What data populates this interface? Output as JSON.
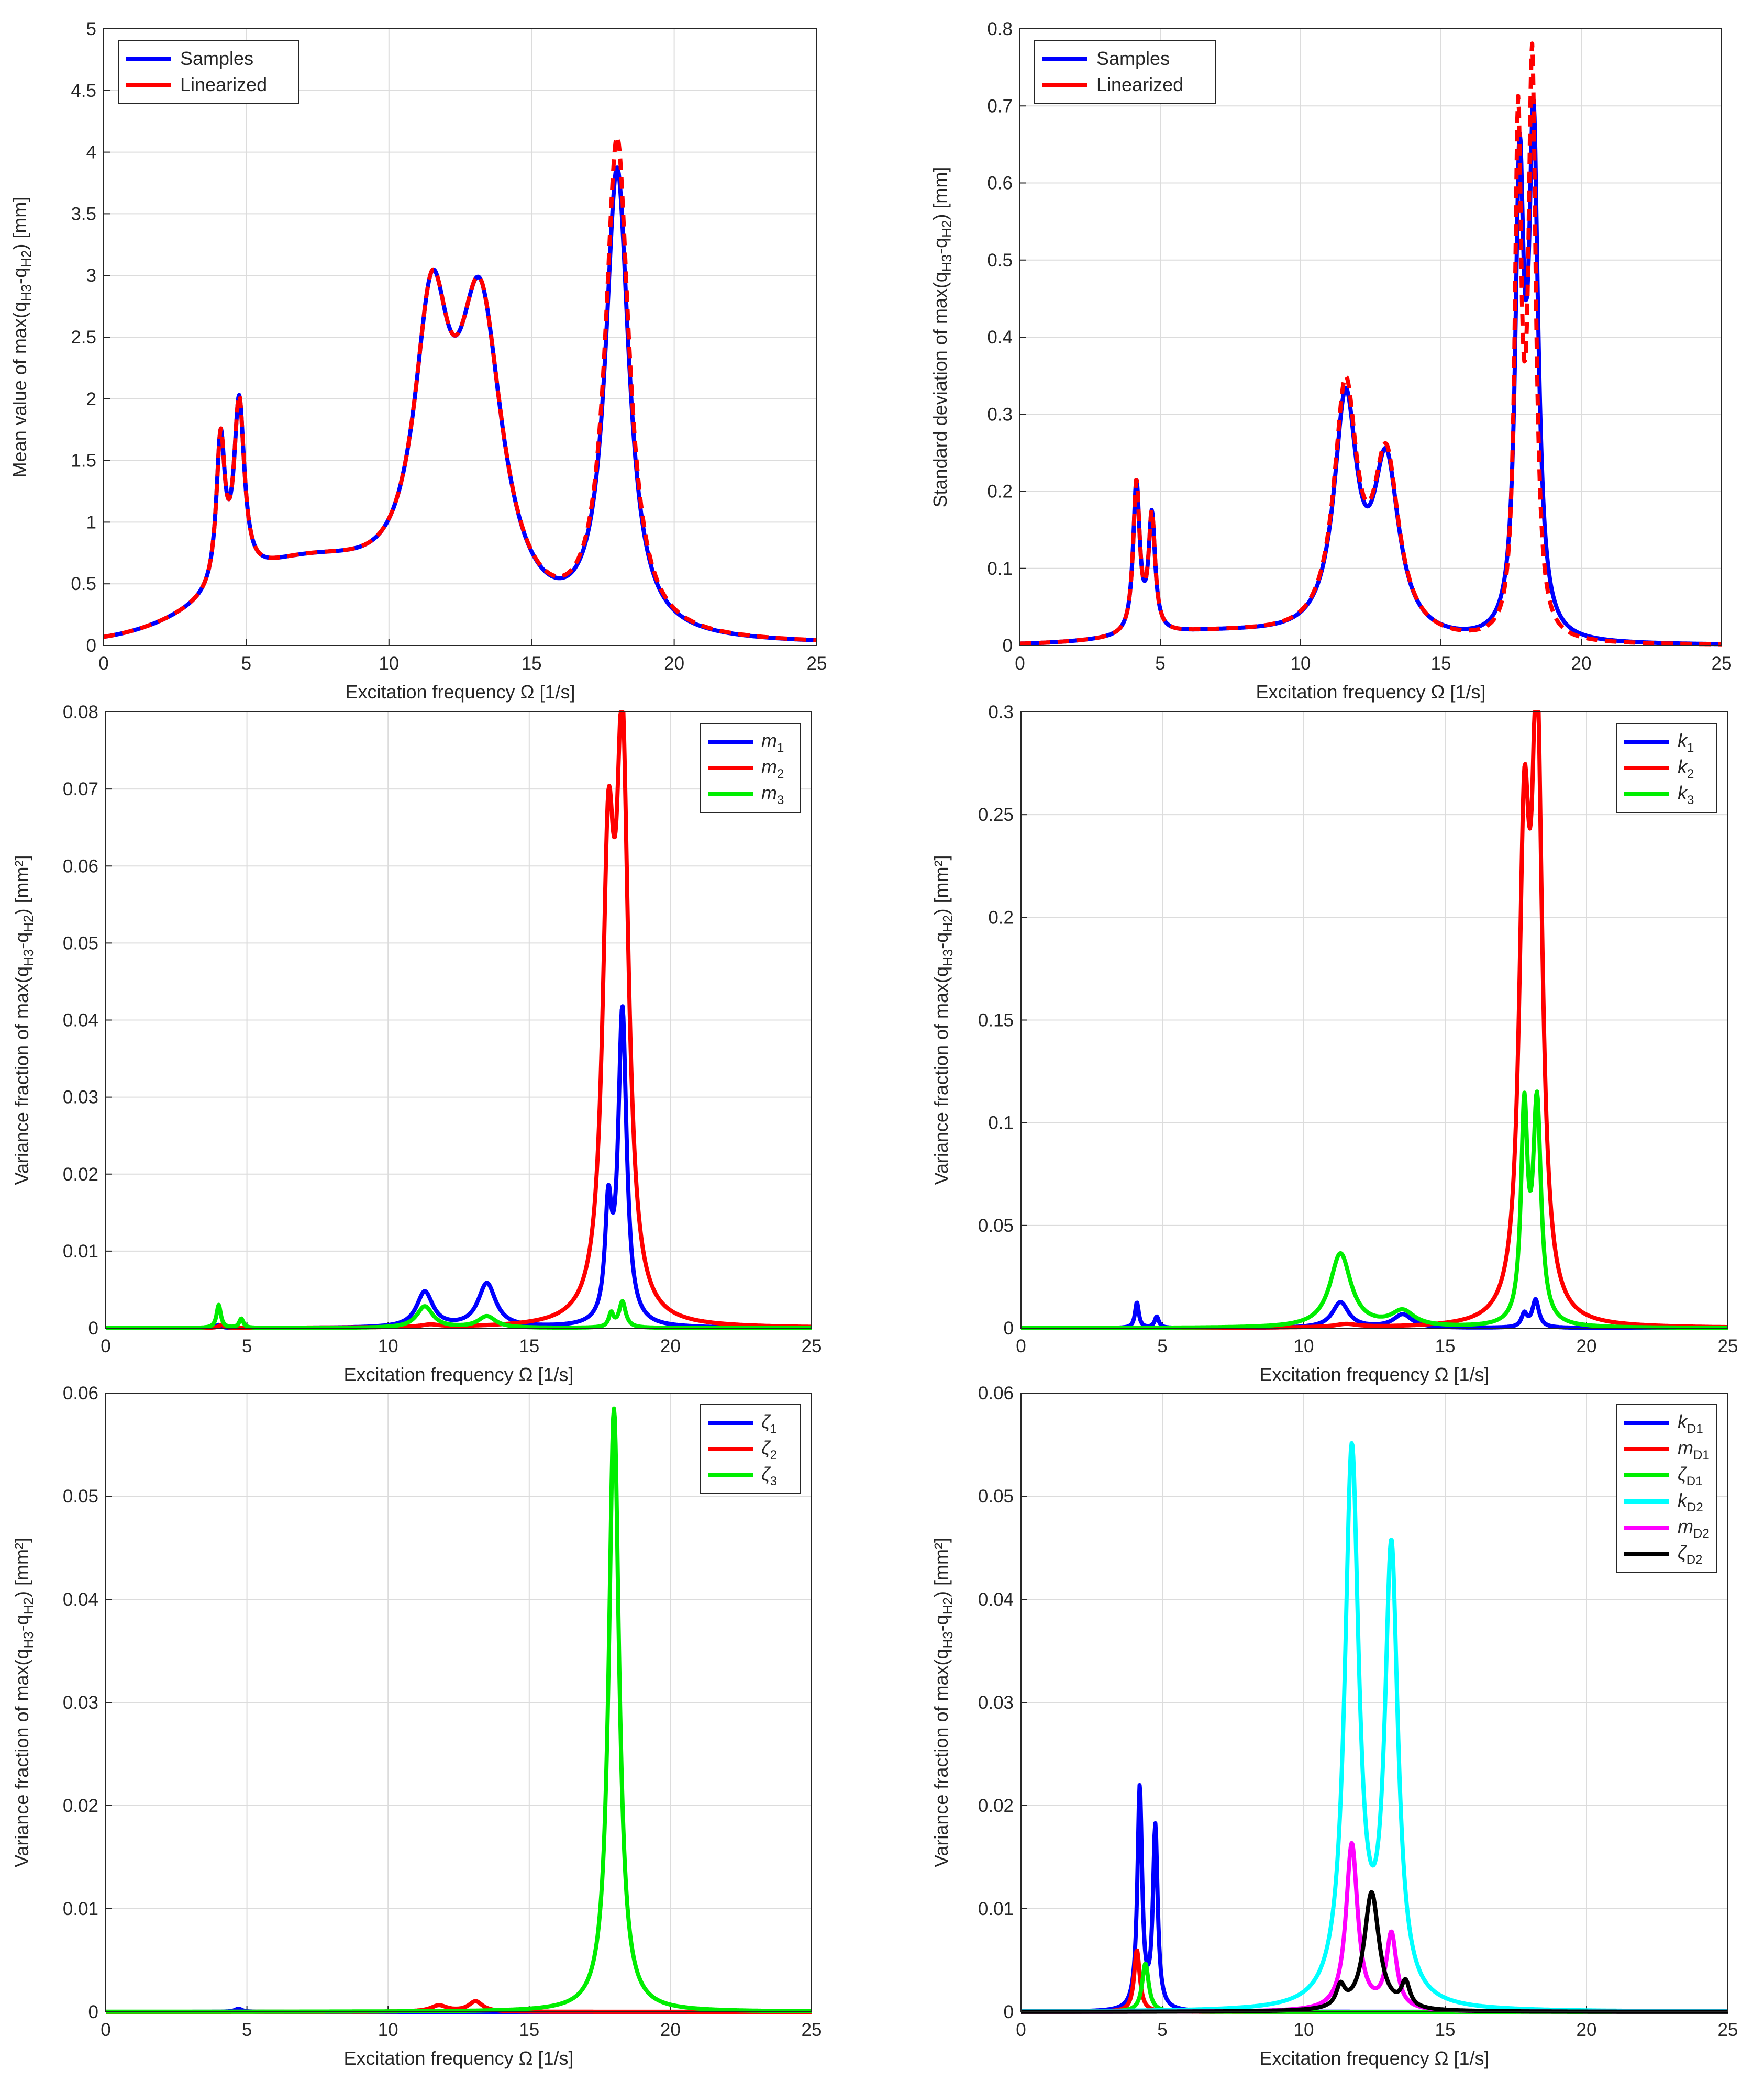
{
  "chart_data": [
    {
      "type": "line",
      "xlabel": "Excitation frequency Ω [1/s]",
      "ylabel": "Mean value of max(q",
      "ylabel_parts": [
        [
          "Mean value of max(q",
          ""
        ],
        [
          "H3",
          "sub"
        ],
        [
          "-q",
          ""
        ],
        [
          "H2",
          "sub"
        ],
        [
          ") [mm]",
          ""
        ]
      ],
      "xlim": [
        0,
        25
      ],
      "ylim": [
        0,
        5
      ],
      "xticks": [
        "0",
        "5",
        "10",
        "15",
        "20",
        "25"
      ],
      "yticks": [
        "0",
        "0.5",
        "1",
        "1.5",
        "2",
        "2.5",
        "3",
        "3.5",
        "4",
        "4.5",
        "5"
      ],
      "grid": true,
      "legend_position": "top-left",
      "series": [
        {
          "name": "Samples",
          "color": "#0000ff",
          "dash": "solid",
          "peaks": [
            [
              4.1,
              1.18,
              0.18
            ],
            [
              4.75,
              1.43,
              0.22
            ],
            [
              11.5,
              2.22,
              0.75
            ],
            [
              13.2,
              2.5,
              0.95
            ],
            [
              18.0,
              3.75,
              0.5
            ]
          ],
          "base": [
            [
              7.0,
              0.6,
              3.0
            ]
          ]
        },
        {
          "name": "Linearized",
          "color": "#ff0000",
          "dash": "dashed",
          "peaks": [
            [
              4.1,
              1.18,
              0.18
            ],
            [
              4.75,
              1.43,
              0.22
            ],
            [
              11.5,
              2.22,
              0.75
            ],
            [
              13.2,
              2.5,
              0.95
            ],
            [
              18.0,
              4.0,
              0.5
            ]
          ],
          "base": [
            [
              7.0,
              0.6,
              3.0
            ]
          ]
        }
      ]
    },
    {
      "type": "line",
      "xlabel": "Excitation frequency Ω [1/s]",
      "ylabel": "Standard deviation of max(q",
      "ylabel_parts": [
        [
          "Standard deviation of max(q",
          ""
        ],
        [
          "H3",
          "sub"
        ],
        [
          "-q",
          ""
        ],
        [
          "H2",
          "sub"
        ],
        [
          ") [mm]",
          ""
        ]
      ],
      "xlim": [
        0,
        25
      ],
      "ylim": [
        0,
        0.8
      ],
      "xticks": [
        "0",
        "5",
        "10",
        "15",
        "20",
        "25"
      ],
      "yticks": [
        "0",
        "0.1",
        "0.2",
        "0.3",
        "0.4",
        "0.5",
        "0.6",
        "0.7",
        "0.8"
      ],
      "grid": true,
      "legend_position": "top-left",
      "series": [
        {
          "name": "Samples",
          "color": "#0000ff",
          "dash": "solid",
          "peaks": [
            [
              4.15,
              0.195,
              0.14
            ],
            [
              4.7,
              0.15,
              0.14
            ],
            [
              11.6,
              0.3,
              0.5
            ],
            [
              13.05,
              0.22,
              0.55
            ],
            [
              17.8,
              0.57,
              0.18
            ],
            [
              18.3,
              0.64,
              0.2
            ]
          ],
          "base": [
            [
              7.0,
              0.015,
              3.0
            ]
          ]
        },
        {
          "name": "Linearized",
          "color": "#ff0000",
          "dash": "dashed",
          "peaks": [
            [
              4.15,
              0.195,
              0.14
            ],
            [
              4.7,
              0.15,
              0.14
            ],
            [
              11.6,
              0.315,
              0.5
            ],
            [
              13.05,
              0.225,
              0.55
            ],
            [
              17.75,
              0.64,
              0.14
            ],
            [
              18.25,
              0.73,
              0.16
            ]
          ],
          "base": [
            [
              7.0,
              0.015,
              3.0
            ]
          ]
        }
      ]
    },
    {
      "type": "line",
      "xlabel": "Excitation frequency Ω [1/s]",
      "ylabel": "Variance fraction of max(q",
      "ylabel_parts": [
        [
          "Variance fraction of max(q",
          ""
        ],
        [
          "H3",
          "sub"
        ],
        [
          "-q",
          ""
        ],
        [
          "H2",
          "sub"
        ],
        [
          ") [mm²]",
          ""
        ]
      ],
      "xlim": [
        0,
        25
      ],
      "ylim": [
        0,
        0.08
      ],
      "xticks": [
        "0",
        "5",
        "10",
        "15",
        "20",
        "25"
      ],
      "yticks": [
        "0",
        "0.01",
        "0.02",
        "0.03",
        "0.04",
        "0.05",
        "0.06",
        "0.07",
        "0.08"
      ],
      "grid": true,
      "legend_position": "top-right",
      "series": [
        {
          "name": "m1",
          "sym": "m",
          "sub": "1",
          "color": "#0000ff",
          "dash": "solid",
          "peaks": [
            [
              4.0,
              0.0004,
              0.1
            ],
            [
              11.3,
              0.0046,
              0.35
            ],
            [
              13.5,
              0.0057,
              0.38
            ],
            [
              17.8,
              0.0138,
              0.14
            ],
            [
              18.3,
              0.0408,
              0.18
            ]
          ],
          "base": []
        },
        {
          "name": "m2",
          "sym": "m",
          "sub": "2",
          "color": "#ff0000",
          "dash": "solid",
          "peaks": [
            [
              4.1,
              0.0004,
              0.1
            ],
            [
              11.5,
              0.0003,
              0.4
            ],
            [
              17.8,
              0.0545,
              0.25
            ],
            [
              18.3,
              0.0712,
              0.26
            ]
          ],
          "base": []
        },
        {
          "name": "m3",
          "sym": "m",
          "sub": "3",
          "color": "#00ee00",
          "dash": "solid",
          "peaks": [
            [
              4.0,
              0.003,
              0.09
            ],
            [
              4.8,
              0.0012,
              0.09
            ],
            [
              11.3,
              0.0028,
              0.35
            ],
            [
              13.5,
              0.0015,
              0.38
            ],
            [
              17.9,
              0.0018,
              0.1
            ],
            [
              18.3,
              0.0034,
              0.14
            ]
          ],
          "base": []
        }
      ]
    },
    {
      "type": "line",
      "xlabel": "Excitation frequency Ω [1/s]",
      "ylabel": "Variance fraction of max(q",
      "ylabel_parts": [
        [
          "Variance fraction of max(q",
          ""
        ],
        [
          "H3",
          "sub"
        ],
        [
          "-q",
          ""
        ],
        [
          "H2",
          "sub"
        ],
        [
          ") [mm²]",
          ""
        ]
      ],
      "xlim": [
        0,
        25
      ],
      "ylim": [
        0,
        0.3
      ],
      "xticks": [
        "0",
        "5",
        "10",
        "15",
        "20",
        "25"
      ],
      "yticks": [
        "0",
        "0.05",
        "0.1",
        "0.15",
        "0.2",
        "0.25",
        "0.3"
      ],
      "grid": true,
      "legend_position": "top-right",
      "series": [
        {
          "name": "k1",
          "sym": "k",
          "sub": "1",
          "color": "#0000ff",
          "dash": "solid",
          "peaks": [
            [
              4.1,
              0.0125,
              0.08
            ],
            [
              4.8,
              0.0055,
              0.09
            ],
            [
              11.3,
              0.0125,
              0.35
            ],
            [
              13.5,
              0.0065,
              0.4
            ],
            [
              17.8,
              0.0065,
              0.12
            ],
            [
              18.2,
              0.0135,
              0.14
            ]
          ],
          "base": []
        },
        {
          "name": "k2",
          "sym": "k",
          "sub": "2",
          "color": "#ff0000",
          "dash": "solid",
          "peaks": [
            [
              11.5,
              0.0015,
              0.5
            ],
            [
              17.8,
              0.2175,
              0.22
            ],
            [
              18.25,
              0.2845,
              0.22
            ]
          ],
          "base": []
        },
        {
          "name": "k3",
          "sym": "k",
          "sub": "3",
          "color": "#00ee00",
          "dash": "solid",
          "peaks": [
            [
              11.3,
              0.036,
              0.45
            ],
            [
              13.5,
              0.0075,
              0.5
            ],
            [
              17.8,
              0.101,
              0.14
            ],
            [
              18.25,
              0.106,
              0.17
            ]
          ],
          "base": []
        }
      ]
    },
    {
      "type": "line",
      "xlabel": "Excitation frequency Ω [1/s]",
      "ylabel": "Variance fraction of max(q",
      "ylabel_parts": [
        [
          "Variance fraction of max(q",
          ""
        ],
        [
          "H3",
          "sub"
        ],
        [
          "-q",
          ""
        ],
        [
          "H2",
          "sub"
        ],
        [
          ") [mm²]",
          ""
        ]
      ],
      "xlim": [
        0,
        25
      ],
      "ylim": [
        0,
        0.06
      ],
      "xticks": [
        "0",
        "5",
        "10",
        "15",
        "20",
        "25"
      ],
      "yticks": [
        "0",
        "0.01",
        "0.02",
        "0.03",
        "0.04",
        "0.05",
        "0.06"
      ],
      "grid": true,
      "legend_position": "top-right",
      "series": [
        {
          "name": "ζ1",
          "sym": "ζ",
          "sub": "1",
          "color": "#0000ff",
          "dash": "solid",
          "peaks": [
            [
              4.7,
              0.0003,
              0.15
            ]
          ],
          "base": []
        },
        {
          "name": "ζ2",
          "sym": "ζ",
          "sub": "2",
          "color": "#ff0000",
          "dash": "solid",
          "peaks": [
            [
              11.8,
              0.0006,
              0.35
            ],
            [
              13.1,
              0.001,
              0.3
            ]
          ],
          "base": []
        },
        {
          "name": "ζ3",
          "sym": "ζ",
          "sub": "3",
          "color": "#00ee00",
          "dash": "solid",
          "peaks": [
            [
              18.0,
              0.0585,
              0.22
            ]
          ],
          "base": []
        }
      ]
    },
    {
      "type": "line",
      "xlabel": "Excitation frequency Ω [1/s]",
      "ylabel": "Variance fraction of max(q",
      "ylabel_parts": [
        [
          "Variance fraction of max(q",
          ""
        ],
        [
          "H3",
          "sub"
        ],
        [
          "-q",
          ""
        ],
        [
          "H2",
          "sub"
        ],
        [
          ") [mm²]",
          ""
        ]
      ],
      "xlim": [
        0,
        25
      ],
      "ylim": [
        0,
        0.06
      ],
      "xticks": [
        "0",
        "5",
        "10",
        "15",
        "20",
        "25"
      ],
      "yticks": [
        "0",
        "0.01",
        "0.02",
        "0.03",
        "0.04",
        "0.05",
        "0.06"
      ],
      "grid": true,
      "legend_position": "top-right",
      "series": [
        {
          "name": "kD1",
          "sym": "k",
          "sub": "D1",
          "color": "#0000ff",
          "dash": "solid",
          "peaks": [
            [
              4.2,
              0.0215,
              0.1
            ],
            [
              4.75,
              0.0176,
              0.1
            ]
          ],
          "base": []
        },
        {
          "name": "mD1",
          "sym": "m",
          "sub": "D1",
          "color": "#ff0000",
          "dash": "solid",
          "peaks": [
            [
              4.1,
              0.006,
              0.12
            ]
          ],
          "base": []
        },
        {
          "name": "ζD1",
          "sym": "ζ",
          "sub": "D1",
          "color": "#00ee00",
          "dash": "solid",
          "peaks": [
            [
              4.4,
              0.0047,
              0.14
            ]
          ],
          "base": []
        },
        {
          "name": "kD2",
          "sym": "k",
          "sub": "D2",
          "color": "#00ffff",
          "dash": "solid",
          "peaks": [
            [
              11.7,
              0.0535,
              0.3
            ],
            [
              13.1,
              0.0435,
              0.28
            ]
          ],
          "base": []
        },
        {
          "name": "mD2",
          "sym": "m",
          "sub": "D2",
          "color": "#ff00ff",
          "dash": "solid",
          "peaks": [
            [
              11.7,
              0.0162,
              0.25
            ],
            [
              13.1,
              0.0073,
              0.22
            ]
          ],
          "base": []
        },
        {
          "name": "ζD2",
          "sym": "ζ",
          "sub": "D2",
          "color": "#000000",
          "dash": "solid",
          "peaks": [
            [
              11.3,
              0.002,
              0.18
            ],
            [
              12.4,
              0.0115,
              0.32
            ],
            [
              13.6,
              0.0024,
              0.18
            ]
          ],
          "base": []
        }
      ]
    }
  ]
}
